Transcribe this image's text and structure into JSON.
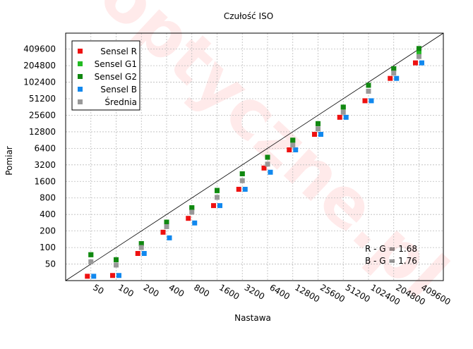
{
  "chart_data": {
    "type": "scatter",
    "title": "Czułość ISO",
    "xlabel": "Nastawa",
    "ylabel": "Pomiar",
    "scale": "log2",
    "x_ticks": [
      "50",
      "100",
      "200",
      "400",
      "800",
      "1600",
      "3200",
      "6400",
      "12800",
      "25600",
      "51200",
      "102400",
      "204800",
      "409600"
    ],
    "y_ticks": [
      "50",
      "100",
      "200",
      "400",
      "800",
      "1600",
      "3200",
      "6400",
      "12800",
      "25600",
      "51200",
      "102400",
      "204800",
      "409600"
    ],
    "xlim": [
      25,
      800000
    ],
    "ylim": [
      25,
      800000
    ],
    "grid": true,
    "legend_position": "top-left",
    "reference_line": "y = x",
    "x": [
      50,
      100,
      200,
      400,
      800,
      1600,
      3200,
      6400,
      12800,
      25600,
      51200,
      102400,
      204800,
      409600
    ],
    "series": [
      {
        "name": "Sensel R",
        "color": "#ee1111",
        "values": [
          30,
          31,
          78,
          190,
          340,
          580,
          1150,
          2800,
          6000,
          11500,
          23500,
          47000,
          120000,
          230000
        ]
      },
      {
        "name": "Sensel G1",
        "color": "#22bb22",
        "values": [
          74,
          60,
          118,
          290,
          530,
          1080,
          2200,
          4400,
          9000,
          18000,
          36000,
          90000,
          180000,
          350000
        ]
      },
      {
        "name": "Sensel G2",
        "color": "#118811",
        "values": [
          74,
          60,
          118,
          290,
          530,
          1100,
          2200,
          4400,
          9000,
          18000,
          36000,
          90000,
          180000,
          420000
        ]
      },
      {
        "name": "Sensel B",
        "color": "#1188ee",
        "values": [
          30,
          31,
          78,
          150,
          280,
          580,
          1150,
          2350,
          6000,
          11500,
          23500,
          47000,
          120000,
          230000
        ]
      },
      {
        "name": "Średnia",
        "color": "#999999",
        "values": [
          55,
          48,
          100,
          240,
          440,
          820,
          1650,
          3300,
          7300,
          14500,
          29000,
          70000,
          150000,
          300000
        ]
      }
    ],
    "annotations": [
      "R - G = 1.68",
      "B - G = 1.76"
    ],
    "watermark": "optyczne.pl"
  }
}
